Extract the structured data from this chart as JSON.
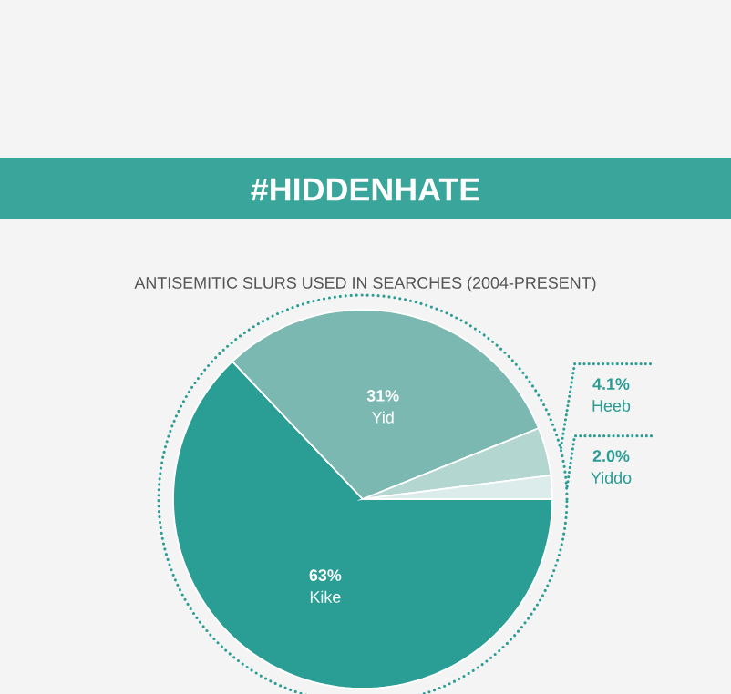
{
  "chart_data": {
    "type": "pie",
    "title": "#HIDDENHATE",
    "subtitle": "ANTISEMITIC SLURS USED IN SEARCHES (2004-PRESENT)",
    "categories": [
      "Kike",
      "Yid",
      "Heeb",
      "Yiddo"
    ],
    "values": [
      63,
      31,
      4.1,
      2.0
    ],
    "colors": [
      "#2a9d94",
      "#7bb8b1",
      "#b3d6d1",
      "#dcecea"
    ],
    "value_labels": [
      "63%",
      "31%",
      "4.1%",
      "2.0%"
    ]
  }
}
